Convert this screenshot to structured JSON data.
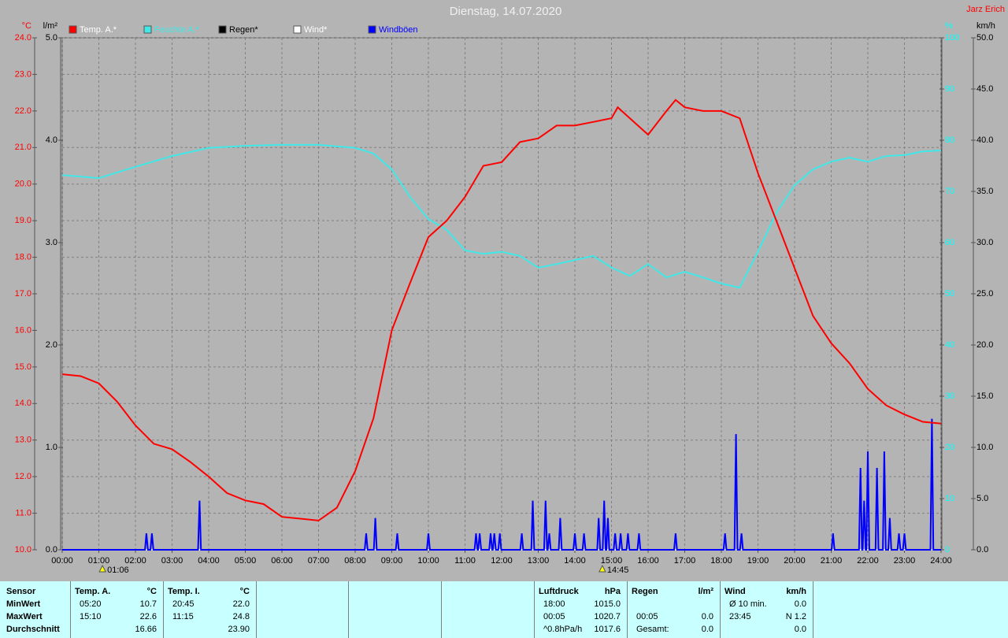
{
  "chart_data": {
    "type": "line",
    "title": "Dienstag, 14.07.2020",
    "author": "Jarz Erich",
    "xlim": [
      0,
      24
    ],
    "xticks": [
      {
        "value": 0,
        "label": "00:00"
      },
      {
        "value": 1,
        "label": "01:00"
      },
      {
        "value": 2,
        "label": "02:00"
      },
      {
        "value": 3,
        "label": "03:00"
      },
      {
        "value": 4,
        "label": "04:00"
      },
      {
        "value": 5,
        "label": "05:00"
      },
      {
        "value": 6,
        "label": "06:00"
      },
      {
        "value": 7,
        "label": "07:00"
      },
      {
        "value": 8,
        "label": "08:00"
      },
      {
        "value": 9,
        "label": "09:00"
      },
      {
        "value": 10,
        "label": "10:00"
      },
      {
        "value": 11,
        "label": "11:00"
      },
      {
        "value": 12,
        "label": "12:00"
      },
      {
        "value": 13,
        "label": "13:00"
      },
      {
        "value": 14,
        "label": "14:00"
      },
      {
        "value": 15,
        "label": "15:00"
      },
      {
        "value": 16,
        "label": "16:00"
      },
      {
        "value": 17,
        "label": "17:00"
      },
      {
        "value": 18,
        "label": "18:00"
      },
      {
        "value": 19,
        "label": "19:00"
      },
      {
        "value": 20,
        "label": "20:00"
      },
      {
        "value": 21,
        "label": "21:00"
      },
      {
        "value": 22,
        "label": "22:00"
      },
      {
        "value": 23,
        "label": "23:00"
      },
      {
        "value": 24,
        "label": "24:00"
      }
    ],
    "ylabel": "°C",
    "ylim": [
      10,
      24
    ],
    "ycolor": "#ff0000",
    "yticks": [
      {
        "value": 10,
        "label": "10.0"
      },
      {
        "value": 11,
        "label": "11.0"
      },
      {
        "value": 12,
        "label": "12.0"
      },
      {
        "value": 13,
        "label": "13.0"
      },
      {
        "value": 14,
        "label": "14.0"
      },
      {
        "value": 15,
        "label": "15.0"
      },
      {
        "value": 16,
        "label": "16.0"
      },
      {
        "value": 17,
        "label": "17.0"
      },
      {
        "value": 18,
        "label": "18.0"
      },
      {
        "value": 19,
        "label": "19.0"
      },
      {
        "value": 20,
        "label": "20.0"
      },
      {
        "value": 21,
        "label": "21.0"
      },
      {
        "value": 22,
        "label": "22.0"
      },
      {
        "value": 23,
        "label": "23.0"
      },
      {
        "value": 24,
        "label": "24.0"
      }
    ],
    "y2label": "l/m²",
    "y2lim": [
      0,
      5
    ],
    "y2color": "#000000",
    "y2ticks": [
      {
        "value": 0,
        "label": "0.0"
      },
      {
        "value": 1,
        "label": "1.0"
      },
      {
        "value": 2,
        "label": "2.0"
      },
      {
        "value": 3,
        "label": "3.0"
      },
      {
        "value": 4,
        "label": "4.0"
      },
      {
        "value": 5,
        "label": "5.0"
      }
    ],
    "y3label": "%",
    "y3lim": [
      0,
      100
    ],
    "y3color": "#00ffff",
    "y3ticks": [
      0,
      10,
      20,
      30,
      40,
      50,
      60,
      70,
      80,
      90,
      100
    ],
    "y4label": "km/h",
    "y4lim": [
      0,
      50
    ],
    "y4color": "#000000",
    "y4ticks": [
      {
        "value": 0,
        "label": "0.0"
      },
      {
        "value": 5,
        "label": "5.0"
      },
      {
        "value": 10,
        "label": "10.0"
      },
      {
        "value": 15,
        "label": "15.0"
      },
      {
        "value": 20,
        "label": "20.0"
      },
      {
        "value": 25,
        "label": "25.0"
      },
      {
        "value": 30,
        "label": "30.0"
      },
      {
        "value": 35,
        "label": "35.0"
      },
      {
        "value": 40,
        "label": "40.0"
      },
      {
        "value": 45,
        "label": "45.0"
      },
      {
        "value": 50,
        "label": "50.0"
      }
    ],
    "grid": true,
    "series": [
      {
        "name": "Temp. A.*",
        "color": "#ff0000",
        "axis": "y",
        "x": [
          0,
          0.5,
          1,
          1.5,
          2,
          2.5,
          3,
          3.5,
          4,
          4.5,
          5,
          5.5,
          6,
          6.5,
          7,
          7.5,
          8,
          8.5,
          9,
          9.5,
          10,
          10.5,
          11,
          11.5,
          12,
          12.5,
          13,
          13.5,
          14,
          14.5,
          15,
          15.17,
          15.5,
          16,
          16.5,
          16.75,
          17,
          17.5,
          18,
          18.5,
          19,
          19.5,
          20,
          20.5,
          21,
          21.5,
          22,
          22.5,
          23,
          23.5,
          24
        ],
        "values": [
          14.8,
          14.75,
          14.55,
          14.05,
          13.4,
          12.9,
          12.75,
          12.4,
          12.0,
          11.55,
          11.35,
          11.25,
          10.9,
          10.85,
          10.8,
          11.15,
          12.15,
          13.6,
          16.0,
          17.3,
          18.55,
          19.0,
          19.65,
          20.5,
          20.6,
          21.15,
          21.25,
          21.6,
          21.6,
          21.7,
          21.8,
          22.1,
          21.8,
          21.35,
          22.0,
          22.3,
          22.1,
          22.0,
          22.0,
          21.8,
          20.3,
          19.0,
          17.7,
          16.4,
          15.65,
          15.1,
          14.4,
          13.95,
          13.7,
          13.5,
          13.45
        ]
      },
      {
        "name": "Feuchte A.*",
        "color": "#40e8e8",
        "axis": "y3",
        "x": [
          0,
          1,
          2,
          3,
          4,
          5,
          6,
          7,
          8,
          8.5,
          9,
          9.5,
          10,
          10.5,
          11,
          11.5,
          12,
          12.5,
          13,
          13.5,
          14,
          14.5,
          15,
          15.5,
          16,
          16.5,
          17,
          17.5,
          18,
          18.5,
          19,
          19.5,
          20,
          20.5,
          21,
          21.5,
          22,
          22.5,
          23,
          23.5,
          24
        ],
        "values": [
          73.2,
          72.6,
          74.8,
          76.9,
          78.5,
          78.9,
          79.1,
          79.1,
          78.5,
          77.4,
          74.3,
          68.9,
          64.6,
          62.5,
          58.5,
          57.8,
          58.2,
          57.4,
          55.1,
          55.8,
          56.6,
          57.4,
          55.1,
          53.5,
          55.8,
          53.2,
          54.3,
          53.2,
          52.0,
          51.2,
          58.2,
          65.8,
          71.2,
          74.3,
          75.8,
          76.6,
          75.8,
          76.9,
          77.1,
          77.8,
          78.0
        ]
      },
      {
        "name": "Regen*",
        "color": "#000000",
        "axis": "y2",
        "x": [
          0,
          24
        ],
        "values": [
          0,
          0
        ]
      },
      {
        "name": "Wind*",
        "color": "#ffffff",
        "axis": "y4",
        "x": [
          0,
          24
        ],
        "values": [
          0,
          0
        ]
      },
      {
        "name": "Windböen",
        "color": "#0000ff",
        "axis": "y4",
        "x": [
          0,
          2.26,
          2.3,
          2.34,
          2.41,
          2.45,
          2.49,
          3.71,
          3.75,
          3.79,
          8.26,
          8.3,
          8.34,
          8.51,
          8.55,
          8.59,
          9.11,
          9.15,
          9.19,
          9.96,
          10.0,
          10.04,
          11.26,
          11.3,
          11.34,
          11.36,
          11.4,
          11.44,
          11.66,
          11.7,
          11.74,
          11.76,
          11.8,
          11.84,
          11.91,
          11.95,
          11.99,
          12.51,
          12.55,
          12.59,
          12.81,
          12.85,
          12.89,
          13.16,
          13.2,
          13.24,
          13.26,
          13.3,
          13.34,
          13.56,
          13.6,
          13.64,
          13.96,
          14.0,
          14.04,
          14.21,
          14.25,
          14.29,
          14.61,
          14.65,
          14.69,
          14.76,
          14.8,
          14.84,
          14.86,
          14.9,
          14.94,
          15.06,
          15.1,
          15.14,
          15.21,
          15.25,
          15.29,
          15.41,
          15.45,
          15.49,
          15.71,
          15.75,
          15.79,
          16.71,
          16.75,
          16.79,
          18.06,
          18.1,
          18.14,
          18.36,
          18.4,
          18.44,
          18.51,
          18.55,
          18.59,
          21.01,
          21.05,
          21.09,
          21.76,
          21.8,
          21.84,
          21.86,
          21.9,
          21.94,
          21.96,
          22.0,
          22.04,
          22.21,
          22.25,
          22.29,
          22.41,
          22.45,
          22.49,
          22.56,
          22.6,
          22.64,
          22.81,
          22.85,
          22.89,
          22.96,
          23.0,
          23.04,
          23.71,
          23.75,
          23.79,
          24
        ],
        "values": [
          0,
          0,
          1.6,
          0,
          0,
          1.6,
          0,
          0,
          4.8,
          0,
          0,
          1.6,
          0,
          0,
          3.1,
          0,
          0,
          1.6,
          0,
          0,
          1.6,
          0,
          0,
          1.6,
          0,
          0,
          1.6,
          0,
          0,
          1.6,
          0,
          0,
          1.6,
          0,
          0,
          1.6,
          0,
          0,
          1.6,
          0,
          0,
          4.8,
          0,
          0,
          4.8,
          0,
          0,
          1.6,
          0,
          0,
          3.1,
          0,
          0,
          1.6,
          0,
          0,
          1.6,
          0,
          0,
          3.1,
          0,
          0,
          4.8,
          0,
          0,
          3.1,
          0,
          0,
          1.6,
          0,
          0,
          1.6,
          0,
          0,
          1.6,
          0,
          0,
          1.6,
          0,
          0,
          1.6,
          0,
          0,
          1.6,
          0,
          0,
          11.3,
          0,
          0,
          1.6,
          0,
          0,
          1.6,
          0,
          0,
          8.0,
          0,
          0,
          4.8,
          0,
          0,
          9.6,
          0,
          0,
          8.0,
          0,
          0,
          9.6,
          0,
          0,
          3.1,
          0,
          0,
          1.6,
          0,
          0,
          1.6,
          0,
          0,
          12.8,
          0,
          0
        ]
      }
    ],
    "annotations": [
      {
        "x": 1.1,
        "label": "01:06"
      },
      {
        "x": 14.75,
        "label": "14:45"
      }
    ]
  },
  "table": {
    "row_labels": [
      "Sensor",
      "MinWert",
      "MaxWert",
      "Durchschnitt"
    ],
    "groups": [
      {
        "title": "Temp. A.",
        "unit": "°C",
        "rows": [
          [
            "05:20",
            "10.7"
          ],
          [
            "15:10",
            "22.6"
          ],
          [
            null,
            "16.66"
          ]
        ]
      },
      {
        "title": "Temp. I.",
        "unit": "°C",
        "rows": [
          [
            "20:45",
            "22.0"
          ],
          [
            "11:15",
            "24.8"
          ],
          [
            null,
            "23.90"
          ]
        ]
      },
      {
        "title": "Luftdruck",
        "unit": "hPa",
        "rows": [
          [
            "18:00",
            "1015.0"
          ],
          [
            "00:05",
            "1020.7"
          ],
          [
            "^0.8hPa/h",
            "1017.6"
          ]
        ]
      },
      {
        "title": "Regen",
        "unit": "l/m²",
        "rows": [
          [
            null,
            null
          ],
          [
            "00:05",
            "0.0"
          ],
          [
            "Gesamt:",
            "0.0"
          ]
        ]
      },
      {
        "title": "Wind",
        "unit": "km/h",
        "rows": [
          [
            "Ø 10 min.",
            "0.0"
          ],
          [
            "23:45",
            "N 1.2"
          ],
          [
            null,
            "0.0"
          ]
        ]
      }
    ]
  }
}
